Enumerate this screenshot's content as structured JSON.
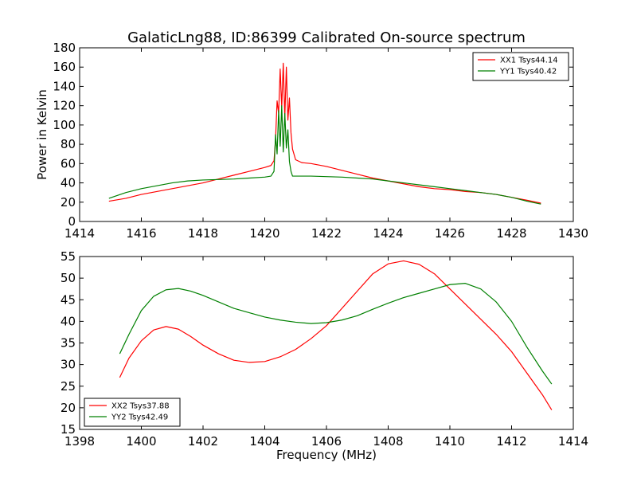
{
  "title": "GalaticLng88, ID:86399 Calibrated On-source spectrum",
  "chart_data": [
    {
      "type": "line",
      "ylabel": "Power in Kelvin",
      "xlabel": "",
      "xlim": [
        1414,
        1430
      ],
      "ylim": [
        0,
        180
      ],
      "xticks": [
        1414,
        1416,
        1418,
        1420,
        1422,
        1424,
        1426,
        1428,
        1430
      ],
      "yticks": [
        0,
        20,
        40,
        60,
        80,
        100,
        120,
        140,
        160,
        180
      ],
      "grid": false,
      "legend_position": "top-right",
      "series": [
        {
          "name": "XX1 Tsys44.14",
          "color": "#ff0000",
          "x": [
            1414.95,
            1415.5,
            1416.0,
            1416.5,
            1417.0,
            1417.5,
            1418.0,
            1418.5,
            1419.0,
            1419.5,
            1420.0,
            1420.2,
            1420.3,
            1420.35,
            1420.4,
            1420.45,
            1420.5,
            1420.55,
            1420.6,
            1420.65,
            1420.7,
            1420.75,
            1420.8,
            1420.85,
            1420.9,
            1421.0,
            1421.2,
            1421.5,
            1422.0,
            1422.5,
            1423.0,
            1423.5,
            1424.0,
            1424.5,
            1425.0,
            1425.5,
            1426.0,
            1426.5,
            1427.0,
            1427.5,
            1428.0,
            1428.5,
            1428.95
          ],
          "values": [
            21,
            24,
            28,
            31,
            34,
            37,
            40,
            44,
            48,
            52,
            56,
            58,
            63,
            85,
            125,
            112,
            158,
            118,
            164,
            108,
            160,
            105,
            128,
            92,
            75,
            64,
            61,
            60,
            57,
            53,
            49,
            45,
            42,
            39,
            36,
            34,
            33,
            31,
            30,
            28,
            25,
            22,
            19
          ]
        },
        {
          "name": "YY1 Tsys40.42",
          "color": "#008000",
          "x": [
            1414.95,
            1415.5,
            1416.0,
            1416.5,
            1417.0,
            1417.5,
            1418.0,
            1418.5,
            1419.0,
            1419.5,
            1420.0,
            1420.2,
            1420.3,
            1420.35,
            1420.4,
            1420.45,
            1420.5,
            1420.55,
            1420.6,
            1420.65,
            1420.7,
            1420.75,
            1420.8,
            1420.85,
            1420.9,
            1421.0,
            1421.2,
            1421.5,
            1422.0,
            1422.5,
            1423.0,
            1423.5,
            1424.0,
            1424.5,
            1425.0,
            1425.5,
            1426.0,
            1426.5,
            1427.0,
            1427.5,
            1428.0,
            1428.5,
            1428.95
          ],
          "values": [
            24,
            30,
            34,
            37,
            40,
            42,
            43,
            43.5,
            44,
            45,
            46,
            47,
            52,
            90,
            70,
            115,
            78,
            120,
            72,
            112,
            76,
            95,
            62,
            52,
            47,
            47,
            47,
            47,
            46.5,
            46,
            45,
            44,
            42,
            40,
            38,
            36,
            34,
            32,
            30,
            28,
            25,
            21,
            18
          ]
        }
      ]
    },
    {
      "type": "line",
      "ylabel": "",
      "xlabel": "Frequency (MHz)",
      "xlim": [
        1398,
        1414
      ],
      "ylim": [
        15,
        55
      ],
      "xticks": [
        1398,
        1400,
        1402,
        1404,
        1406,
        1408,
        1410,
        1412,
        1414
      ],
      "yticks": [
        15,
        20,
        25,
        30,
        35,
        40,
        45,
        50,
        55
      ],
      "grid": false,
      "legend_position": "bottom-left",
      "series": [
        {
          "name": "XX2 Tsys37.88",
          "color": "#ff0000",
          "x": [
            1399.3,
            1399.6,
            1400.0,
            1400.4,
            1400.8,
            1401.2,
            1401.6,
            1402.0,
            1402.5,
            1403.0,
            1403.5,
            1404.0,
            1404.5,
            1405.0,
            1405.5,
            1406.0,
            1406.5,
            1407.0,
            1407.5,
            1408.0,
            1408.5,
            1409.0,
            1409.5,
            1410.0,
            1410.5,
            1411.0,
            1411.5,
            1412.0,
            1412.5,
            1413.0,
            1413.3
          ],
          "values": [
            27,
            31.5,
            35.5,
            38,
            38.8,
            38.2,
            36.5,
            34.5,
            32.5,
            31,
            30.5,
            30.7,
            31.8,
            33.5,
            36,
            39,
            43,
            47,
            51,
            53.3,
            54,
            53.2,
            51,
            47.5,
            44,
            40.5,
            37,
            33,
            28,
            23,
            19.5
          ]
        },
        {
          "name": "YY2 Tsys42.49",
          "color": "#008000",
          "x": [
            1399.3,
            1399.6,
            1400.0,
            1400.4,
            1400.8,
            1401.2,
            1401.6,
            1402.0,
            1402.5,
            1403.0,
            1403.5,
            1404.0,
            1404.5,
            1405.0,
            1405.5,
            1406.0,
            1406.5,
            1407.0,
            1407.5,
            1408.0,
            1408.5,
            1409.0,
            1409.5,
            1410.0,
            1410.5,
            1411.0,
            1411.5,
            1412.0,
            1412.5,
            1413.0,
            1413.3
          ],
          "values": [
            32.5,
            37,
            42.5,
            45.8,
            47.3,
            47.6,
            47,
            46,
            44.5,
            43,
            42,
            41,
            40.3,
            39.8,
            39.5,
            39.7,
            40.3,
            41.3,
            42.8,
            44.2,
            45.5,
            46.5,
            47.5,
            48.5,
            48.8,
            47.5,
            44.5,
            40,
            34,
            28.5,
            25.5
          ]
        }
      ]
    }
  ]
}
